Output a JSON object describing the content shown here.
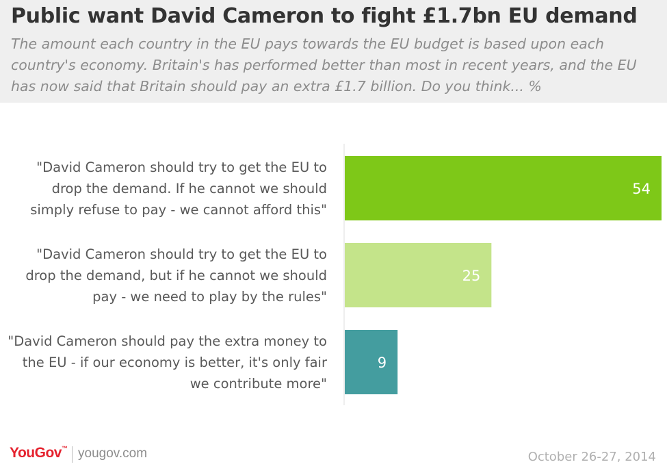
{
  "header": {
    "title": "Public want David Cameron to fight £1.7bn EU demand",
    "subtitle": "The amount each country in the EU pays towards the EU budget is based upon each country's economy. Britain's has performed better than most in recent years, and the EU has now said that Britain should pay an extra £1.7 billion. Do you think... %"
  },
  "chart_data": {
    "type": "bar",
    "orientation": "horizontal",
    "categories": [
      "\"David Cameron should try to get the EU to drop the demand. If he cannot we should simply refuse to pay - we cannot afford this\"",
      "\"David Cameron should try to get the EU to drop the demand, but if he cannot we should pay - we need to play by the rules\"",
      "\"David Cameron should pay the extra money to the EU - if our economy is better, it's only fair we contribute more\""
    ],
    "category_lines": [
      [
        "\"David Cameron should try to get the EU to",
        "drop the demand. If he cannot we should",
        "simply refuse to pay - we cannot afford this\""
      ],
      [
        "\"David Cameron should try to get the EU to",
        "drop the demand, but if he cannot we should",
        "pay - we need to play by the rules\""
      ],
      [
        "\"David Cameron should pay the extra money to",
        "the EU - if our economy is better, it's only fair",
        "we contribute more\""
      ]
    ],
    "values": [
      54,
      25,
      9
    ],
    "colors": [
      "#7ec818",
      "#c4e48a",
      "#449d9f"
    ],
    "xlim": [
      0,
      54
    ],
    "data_labels": true,
    "grid": false
  },
  "footer": {
    "logo": "YouGov",
    "site": "yougov.com",
    "date": "October 26-27, 2014"
  }
}
